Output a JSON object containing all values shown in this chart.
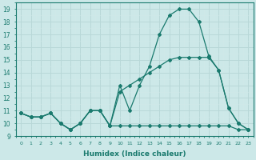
{
  "xlabel": "Humidex (Indice chaleur)",
  "x": [
    0,
    1,
    2,
    3,
    4,
    5,
    6,
    7,
    8,
    9,
    10,
    11,
    12,
    13,
    14,
    15,
    16,
    17,
    18,
    19,
    20,
    21,
    22,
    23
  ],
  "line1": [
    10.8,
    10.5,
    10.5,
    10.8,
    10.0,
    9.5,
    10.0,
    11.0,
    11.0,
    9.8,
    13.0,
    11.0,
    13.0,
    14.5,
    17.0,
    18.5,
    19.0,
    19.0,
    18.0,
    15.3,
    14.2,
    11.2,
    10.0,
    9.5
  ],
  "line2": [
    10.8,
    10.5,
    10.5,
    10.8,
    10.0,
    9.5,
    10.0,
    11.0,
    11.0,
    9.8,
    9.8,
    9.8,
    9.8,
    9.8,
    9.8,
    9.8,
    9.8,
    9.8,
    9.8,
    9.8,
    9.8,
    9.8,
    9.5,
    9.5
  ],
  "line3": [
    10.8,
    10.5,
    10.5,
    10.8,
    10.0,
    9.5,
    10.0,
    11.0,
    11.0,
    9.8,
    12.5,
    13.0,
    13.5,
    14.0,
    14.5,
    15.0,
    15.2,
    15.2,
    15.2,
    15.2,
    14.2,
    11.2,
    10.0,
    9.5
  ],
  "color": "#1a7a6e",
  "bg_color": "#cce8e8",
  "grid_major_color": "#b8d8d8",
  "grid_minor_color": "#d0e8e8",
  "ylim": [
    9,
    19.5
  ],
  "yticks": [
    9,
    10,
    11,
    12,
    13,
    14,
    15,
    16,
    17,
    18,
    19
  ],
  "xlim": [
    -0.5,
    23.5
  ]
}
